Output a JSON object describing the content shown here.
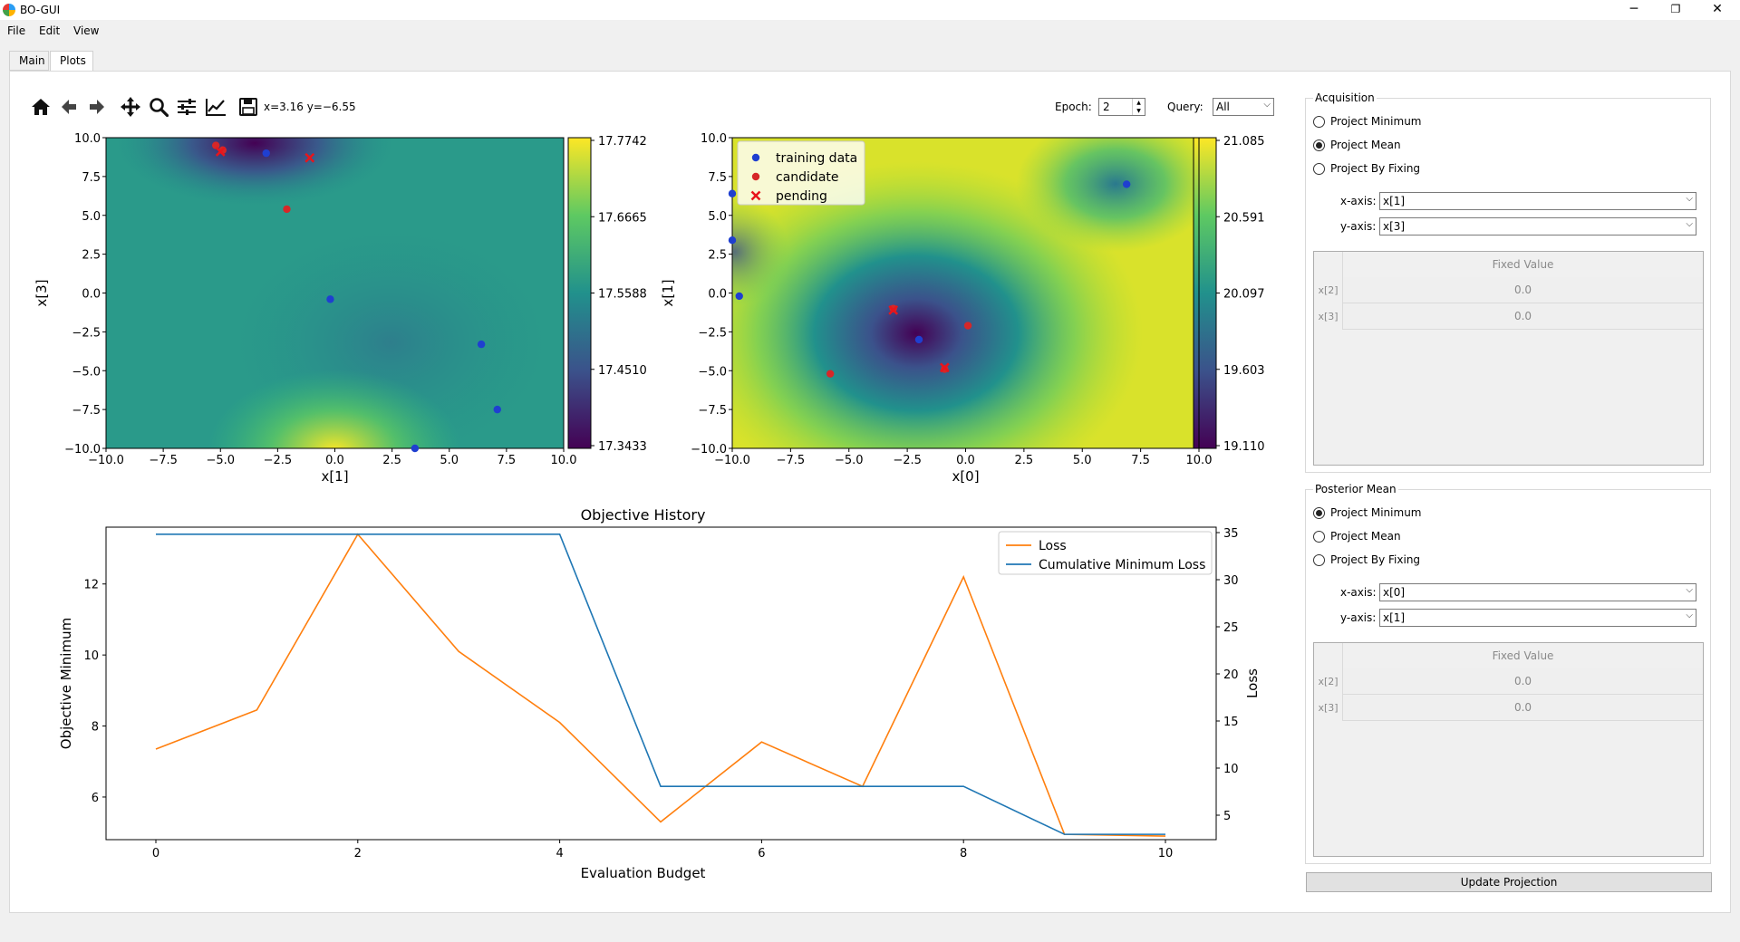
{
  "window": {
    "title": "BO-GUI",
    "controls": {
      "minimize": "─",
      "restore": "❐",
      "close": "✕"
    }
  },
  "menu": [
    "File",
    "Edit",
    "View"
  ],
  "tabs": [
    {
      "label": "Main",
      "active": false
    },
    {
      "label": "Plots",
      "active": true
    }
  ],
  "toolbar": {
    "icons": [
      "home-icon",
      "back-arrow-icon",
      "forward-arrow-icon",
      "pan-icon",
      "zoom-icon",
      "subplots-icon",
      "edit-curve-icon",
      "save-icon"
    ],
    "coords": "x=3.16 y=−6.55"
  },
  "controls": {
    "epoch_label": "Epoch:",
    "epoch_value": "2",
    "query_label": "Query:",
    "query_value": "All"
  },
  "acquisition": {
    "title": "Acquisition",
    "options": [
      "Project Minimum",
      "Project Mean",
      "Project By Fixing"
    ],
    "selected": 1,
    "x_axis_label": "x-axis:",
    "x_axis_value": "x[1]",
    "y_axis_label": "y-axis:",
    "y_axis_value": "x[3]",
    "table_header": "Fixed Value",
    "rows": [
      {
        "name": "x[2]",
        "value": "0.0"
      },
      {
        "name": "x[3]",
        "value": "0.0"
      }
    ]
  },
  "posterior": {
    "title": "Posterior Mean",
    "options": [
      "Project Minimum",
      "Project Mean",
      "Project By Fixing"
    ],
    "selected": 0,
    "x_axis_label": "x-axis:",
    "x_axis_value": "x[0]",
    "y_axis_label": "y-axis:",
    "y_axis_value": "x[1]",
    "table_header": "Fixed Value",
    "rows": [
      {
        "name": "x[2]",
        "value": "0.0"
      },
      {
        "name": "x[3]",
        "value": "0.0"
      }
    ]
  },
  "update_button": "Update Projection",
  "chart_data": [
    {
      "type": "heatmap",
      "xlabel": "x[1]",
      "ylabel": "x[3]",
      "xlim": [
        -10,
        10
      ],
      "ylim": [
        -10,
        10
      ],
      "x_ticks": [
        "−10.0",
        "−7.5",
        "−5.0",
        "−2.5",
        "0.0",
        "2.5",
        "5.0",
        "7.5",
        "10.0"
      ],
      "y_ticks": [
        "10.0",
        "7.5",
        "5.0",
        "2.5",
        "0.0",
        "−2.5",
        "−5.0",
        "−7.5",
        "−10.0"
      ],
      "colorbar_ticks": [
        "17.7742",
        "17.6665",
        "17.5588",
        "17.4510",
        "17.3433"
      ],
      "colormap": "viridis",
      "training_points": [
        [
          -3.0,
          9.0
        ],
        [
          -0.2,
          -0.4
        ],
        [
          6.4,
          -3.3
        ],
        [
          7.1,
          -7.5
        ],
        [
          3.5,
          -10.0
        ]
      ],
      "candidate_points": [
        [
          -5.2,
          9.5
        ],
        [
          -2.1,
          5.4
        ],
        [
          -4.9,
          9.2
        ]
      ],
      "pending_points": [
        [
          -5.0,
          9.1
        ],
        [
          -1.1,
          8.7
        ]
      ]
    },
    {
      "type": "heatmap",
      "xlabel": "x[0]",
      "ylabel": "x[1]",
      "xlim": [
        -10,
        10
      ],
      "ylim": [
        -10,
        10
      ],
      "x_ticks": [
        "−10.0",
        "−7.5",
        "−5.0",
        "−2.5",
        "0.0",
        "2.5",
        "5.0",
        "7.5",
        "10.0"
      ],
      "y_ticks": [
        "10.0",
        "7.5",
        "5.0",
        "2.5",
        "0.0",
        "−2.5",
        "−5.0",
        "−7.5",
        "−10.0"
      ],
      "colorbar_ticks": [
        "21.085",
        "20.591",
        "20.097",
        "19.603",
        "19.110"
      ],
      "colormap": "viridis",
      "legend": [
        "training data",
        "candidate",
        "pending"
      ],
      "legend_position": "top-left",
      "training_points": [
        [
          -10.0,
          6.4
        ],
        [
          -10.0,
          3.4
        ],
        [
          -9.7,
          -0.2
        ],
        [
          -2.0,
          -3.0
        ],
        [
          6.9,
          7.0
        ]
      ],
      "candidate_points": [
        [
          -3.1,
          -1.0
        ],
        [
          0.1,
          -2.1
        ],
        [
          -0.9,
          -4.9
        ],
        [
          -5.8,
          -5.2
        ]
      ],
      "pending_points": [
        [
          -3.1,
          -1.1
        ],
        [
          -0.9,
          -4.8
        ]
      ]
    },
    {
      "type": "line",
      "title": "Objective History",
      "xlabel": "Evaluation Budget",
      "ylabel_left": "Objective Minimum",
      "ylabel_right": "Loss",
      "x": [
        0,
        1,
        2,
        3,
        4,
        5,
        6,
        7,
        8,
        9,
        10
      ],
      "x_ticks": [
        "0",
        "2",
        "4",
        "6",
        "8",
        "10"
      ],
      "y_left_ticks": [
        "6",
        "8",
        "10",
        "12"
      ],
      "y_right_ticks": [
        "5",
        "10",
        "15",
        "20",
        "25",
        "30",
        "35"
      ],
      "ylim_left": [
        4.8,
        13.6
      ],
      "legend_position": "top-right",
      "series": [
        {
          "name": "Loss",
          "color": "#ff7f0e",
          "axis": "left",
          "values": [
            7.35,
            8.45,
            13.4,
            10.1,
            8.1,
            5.3,
            7.55,
            6.3,
            12.2,
            4.95,
            4.9
          ]
        },
        {
          "name": "Cumulative Minimum Loss",
          "color": "#1f77b4",
          "axis": "left",
          "values": [
            13.4,
            13.4,
            13.4,
            13.4,
            13.4,
            6.3,
            6.3,
            6.3,
            6.3,
            4.95,
            4.95
          ]
        }
      ]
    }
  ]
}
